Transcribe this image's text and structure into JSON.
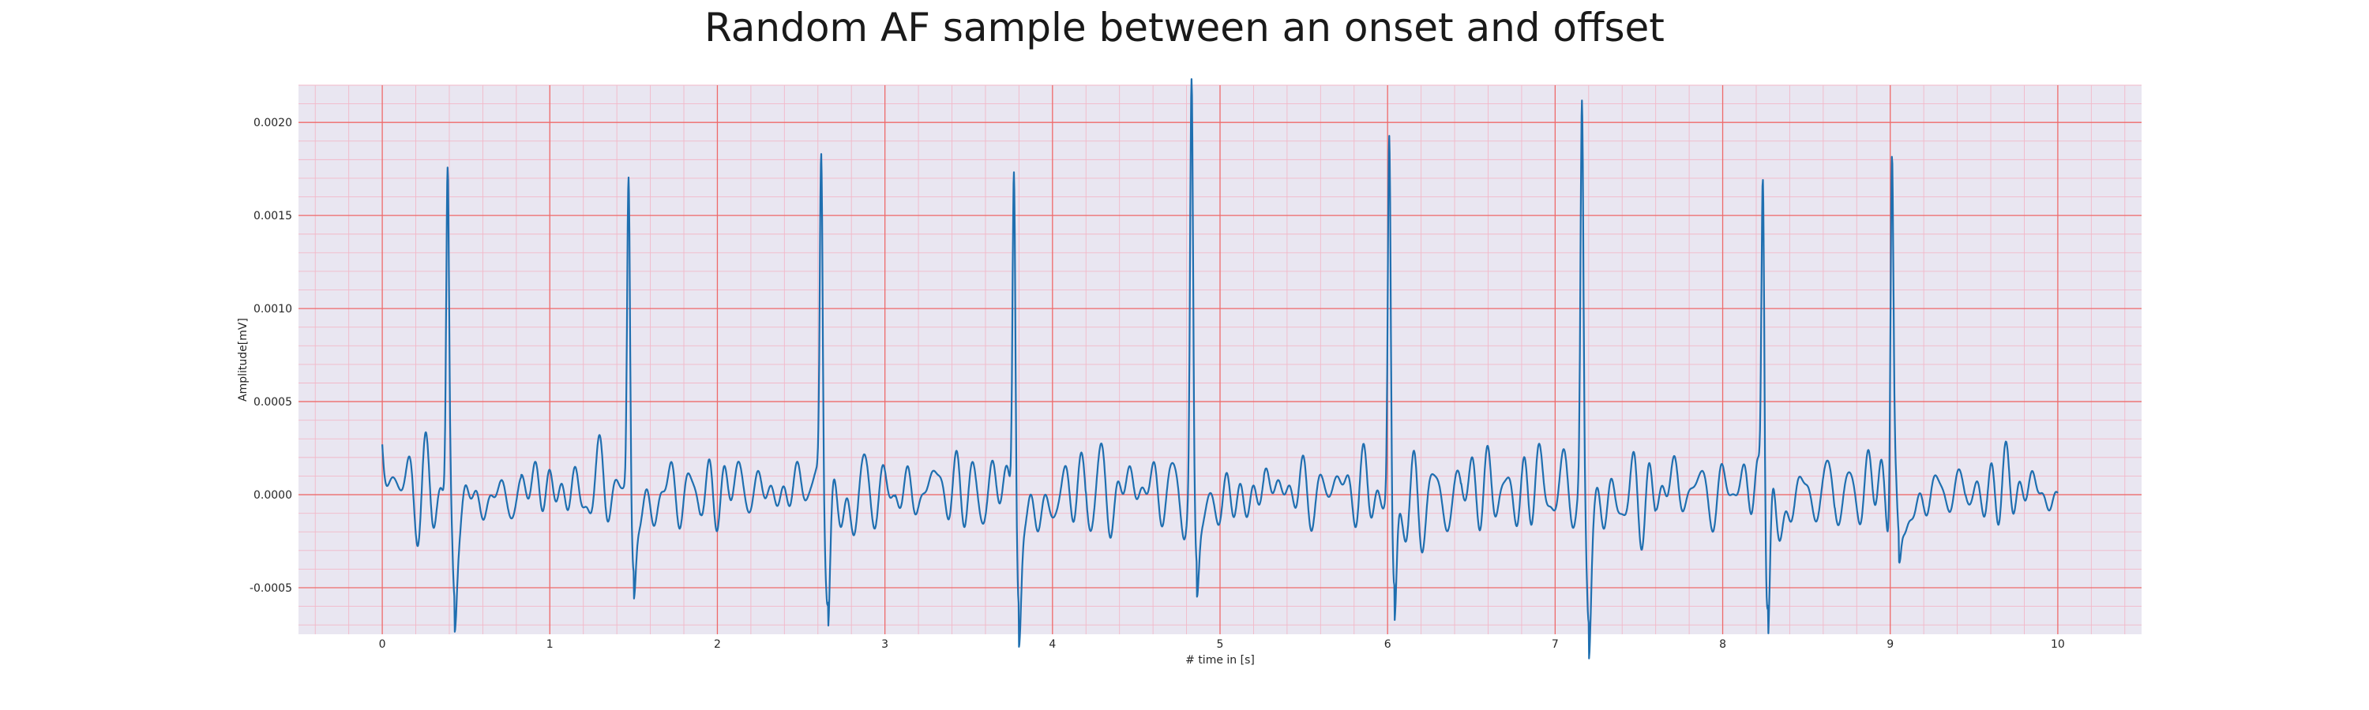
{
  "chart_data": {
    "type": "line",
    "title": "Random AF sample between an onset and offset",
    "xlabel": "# time in [s]",
    "ylabel": "Amplitude[mV]",
    "xlim": [
      -0.5,
      10.5
    ],
    "ylim": [
      -0.00075,
      0.0022
    ],
    "x_ticks": [
      0,
      1,
      2,
      3,
      4,
      5,
      6,
      7,
      8,
      9,
      10
    ],
    "x_tick_labels": [
      "0",
      "1",
      "2",
      "3",
      "4",
      "5",
      "6",
      "7",
      "8",
      "9",
      "10"
    ],
    "y_ticks": [
      -0.0005,
      0.0,
      0.0005,
      0.001,
      0.0015,
      0.002
    ],
    "y_tick_labels": [
      "-0.0005",
      "0.0000",
      "0.0005",
      "0.0010",
      "0.0015",
      "0.0020"
    ],
    "grid": true,
    "minor_grid": true,
    "colors": {
      "line": "#1f6fb0",
      "plot_background": "#e9e6f1",
      "major_grid": "#ee6b6b",
      "minor_grid": "#f2b8c8"
    },
    "series": [
      {
        "r_peaks": [
          {
            "t": 0.39,
            "amp": 0.0017
          },
          {
            "t": 1.47,
            "amp": 0.00168
          },
          {
            "t": 2.62,
            "amp": 0.00181
          },
          {
            "t": 3.77,
            "amp": 0.0018
          },
          {
            "t": 4.83,
            "amp": 0.00207
          },
          {
            "t": 6.01,
            "amp": 0.00189
          },
          {
            "t": 7.16,
            "amp": 0.002
          },
          {
            "t": 8.24,
            "amp": 0.00182
          },
          {
            "t": 9.01,
            "amp": 0.00185
          }
        ],
        "s_troughs": [
          {
            "t": 0.43,
            "amp": -0.00052
          },
          {
            "t": 1.5,
            "amp": -0.00042
          },
          {
            "t": 2.66,
            "amp": -0.00046
          },
          {
            "t": 3.8,
            "amp": -0.00062
          },
          {
            "t": 4.86,
            "amp": -0.0005
          },
          {
            "t": 6.04,
            "amp": -0.00057
          },
          {
            "t": 7.2,
            "amp": -0.00058
          },
          {
            "t": 8.27,
            "amp": -0.00056
          },
          {
            "t": 9.05,
            "amp": -0.00042
          }
        ],
        "start": {
          "t": 0.0,
          "amp": 0.00027
        },
        "end": {
          "t": 10.0,
          "amp": 0.0
        },
        "baseline_fluctuation_range": [
          -0.0002,
          0.00035
        ]
      }
    ]
  }
}
